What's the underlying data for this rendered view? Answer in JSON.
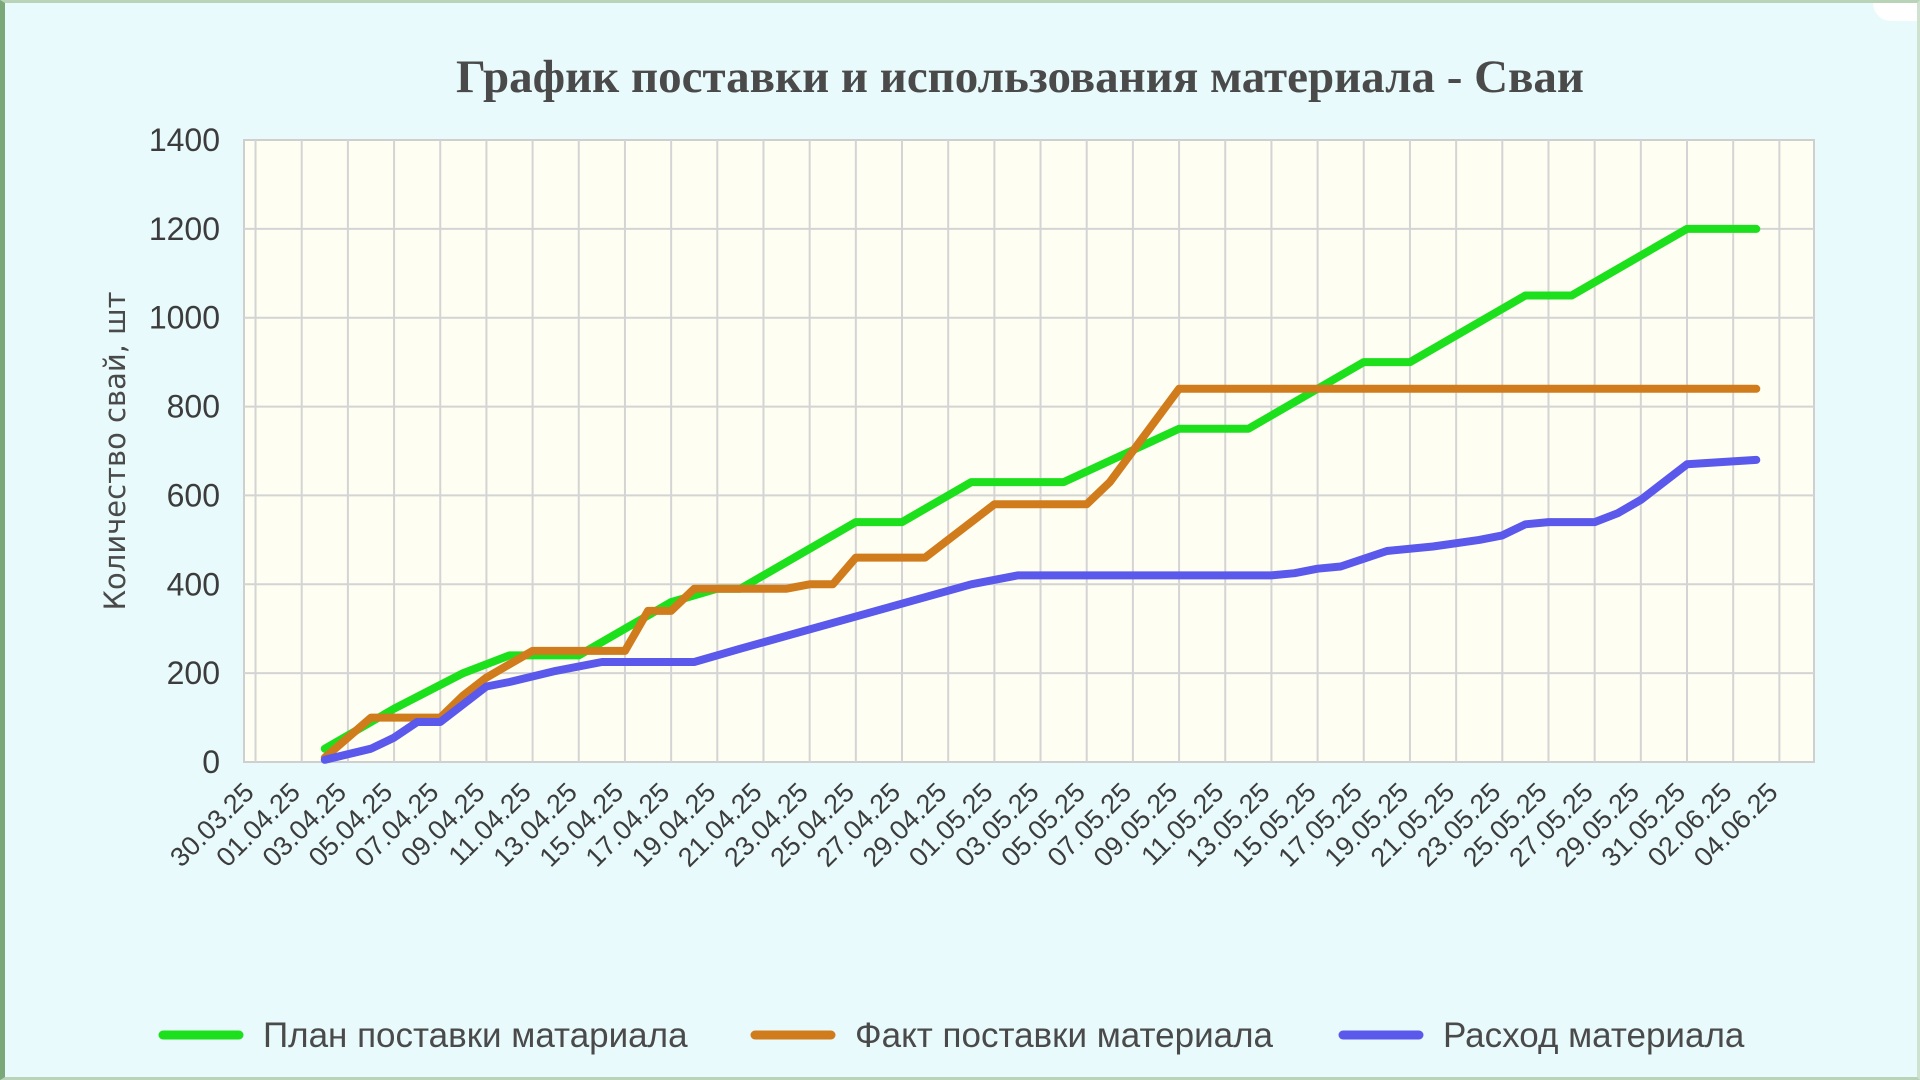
{
  "chart_data": {
    "type": "line",
    "title": "График поставки и использования материала - Сваи",
    "xlabel": "",
    "ylabel": "Количество свай, шт",
    "ylim": [
      0,
      1400
    ],
    "yticks": [
      "0",
      "200",
      "400",
      "600",
      "800",
      "1000",
      "1200",
      "1400"
    ],
    "x_tick_labels": [
      "30.03.25",
      "01.04.25",
      "03.04.25",
      "05.04.25",
      "07.04.25",
      "09.04.25",
      "11.04.25",
      "13.04.25",
      "15.04.25",
      "17.04.25",
      "19.04.25",
      "21.04.25",
      "23.04.25",
      "25.04.25",
      "27.04.25",
      "29.04.25",
      "01.05.25",
      "03.05.25",
      "05.05.25",
      "07.05.25",
      "09.05.25",
      "11.05.25",
      "13.05.25",
      "15.05.25",
      "17.05.25",
      "19.05.25",
      "21.05.25",
      "23.05.25",
      "25.05.25",
      "27.05.25",
      "29.05.25",
      "31.05.25",
      "02.06.25",
      "04.06.25"
    ],
    "grid": true,
    "legend_position": "bottom",
    "series": [
      {
        "name": "План поставки матариала",
        "color": "#1de01d",
        "points": [
          [
            "02.04.25",
            30
          ],
          [
            "05.04.25",
            120
          ],
          [
            "08.04.25",
            200
          ],
          [
            "10.04.25",
            240
          ],
          [
            "13.04.25",
            240
          ],
          [
            "17.04.25",
            360
          ],
          [
            "19.04.25",
            390
          ],
          [
            "20.04.25",
            390
          ],
          [
            "25.04.25",
            540
          ],
          [
            "27.04.25",
            540
          ],
          [
            "30.04.25",
            630
          ],
          [
            "04.05.25",
            630
          ],
          [
            "09.05.25",
            750
          ],
          [
            "12.05.25",
            750
          ],
          [
            "17.05.25",
            900
          ],
          [
            "19.05.25",
            900
          ],
          [
            "24.05.25",
            1050
          ],
          [
            "26.05.25",
            1050
          ],
          [
            "31.05.25",
            1200
          ],
          [
            "03.06.25",
            1200
          ]
        ]
      },
      {
        "name": "Факт поставки материала",
        "color": "#d07c1c",
        "points": [
          [
            "02.04.25",
            10
          ],
          [
            "04.04.25",
            100
          ],
          [
            "07.04.25",
            100
          ],
          [
            "08.04.25",
            150
          ],
          [
            "09.04.25",
            190
          ],
          [
            "11.04.25",
            250
          ],
          [
            "15.04.25",
            250
          ],
          [
            "16.04.25",
            340
          ],
          [
            "17.04.25",
            340
          ],
          [
            "18.04.25",
            390
          ],
          [
            "22.04.25",
            390
          ],
          [
            "23.04.25",
            400
          ],
          [
            "24.04.25",
            400
          ],
          [
            "25.04.25",
            460
          ],
          [
            "28.04.25",
            460
          ],
          [
            "01.05.25",
            580
          ],
          [
            "05.05.25",
            580
          ],
          [
            "06.05.25",
            630
          ],
          [
            "07.05.25",
            700
          ],
          [
            "09.05.25",
            840
          ],
          [
            "03.06.25",
            840
          ]
        ]
      },
      {
        "name": "Расход материала",
        "color": "#5b58ec",
        "points": [
          [
            "02.04.25",
            5
          ],
          [
            "04.04.25",
            30
          ],
          [
            "05.04.25",
            55
          ],
          [
            "06.04.25",
            90
          ],
          [
            "07.04.25",
            90
          ],
          [
            "09.04.25",
            170
          ],
          [
            "10.04.25",
            180
          ],
          [
            "12.04.25",
            205
          ],
          [
            "14.04.25",
            225
          ],
          [
            "18.04.25",
            225
          ],
          [
            "20.04.25",
            255
          ],
          [
            "30.04.25",
            400
          ],
          [
            "02.05.25",
            420
          ],
          [
            "13.05.25",
            420
          ],
          [
            "14.05.25",
            425
          ],
          [
            "15.05.25",
            435
          ],
          [
            "16.05.25",
            440
          ],
          [
            "18.05.25",
            475
          ],
          [
            "20.05.25",
            485
          ],
          [
            "22.05.25",
            500
          ],
          [
            "23.05.25",
            510
          ],
          [
            "24.05.25",
            535
          ],
          [
            "25.05.25",
            540
          ],
          [
            "27.05.25",
            540
          ],
          [
            "28.05.25",
            560
          ],
          [
            "29.05.25",
            590
          ],
          [
            "31.05.25",
            670
          ],
          [
            "03.06.25",
            680
          ]
        ]
      }
    ]
  }
}
